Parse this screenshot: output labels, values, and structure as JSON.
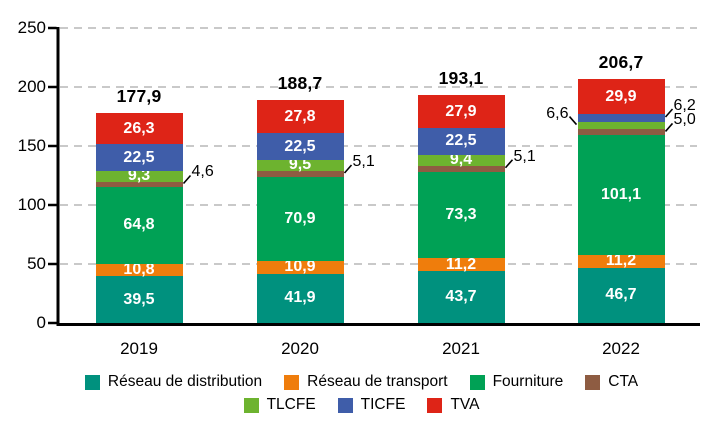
{
  "chart_data": {
    "type": "bar",
    "stacked": true,
    "title": "",
    "xlabel": "",
    "ylabel": "",
    "categories": [
      "2019",
      "2020",
      "2021",
      "2022"
    ],
    "series": [
      {
        "name": "Réseau de distribution",
        "color": "#00917E",
        "values": [
          39.5,
          41.9,
          43.7,
          46.7
        ]
      },
      {
        "name": "Réseau de transport",
        "color": "#EF7D0C",
        "values": [
          10.8,
          10.9,
          11.2,
          11.2
        ]
      },
      {
        "name": "Fourniture",
        "color": "#00A155",
        "values": [
          64.8,
          70.9,
          73.3,
          101.1
        ]
      },
      {
        "name": "CTA",
        "color": "#8E5C42",
        "values": [
          4.6,
          5.1,
          5.1,
          5.0
        ]
      },
      {
        "name": "TLCFE",
        "color": "#6DB32F",
        "values": [
          9.3,
          9.5,
          9.4,
          6.6
        ]
      },
      {
        "name": "TICFE",
        "color": "#3F5DA9",
        "values": [
          22.5,
          22.5,
          22.5,
          6.2
        ]
      },
      {
        "name": "TVA",
        "color": "#DE2417",
        "values": [
          26.3,
          27.8,
          27.9,
          29.9
        ]
      }
    ],
    "totals": [
      177.9,
      188.7,
      193.1,
      206.7
    ],
    "ylim": [
      0,
      250
    ],
    "yticks": [
      0,
      50,
      100,
      150,
      200,
      250
    ],
    "grid": true,
    "gridline_color": "#C9C9C9",
    "axis_color": "#000000",
    "decimal_separator": ",",
    "legend_position": "bottom",
    "legend_rows": [
      [
        0,
        1,
        2,
        3
      ],
      [
        4,
        5,
        6
      ]
    ],
    "outside_labels": [
      {
        "category": "2019",
        "series": "CTA",
        "side": "right"
      },
      {
        "category": "2020",
        "series": "CTA",
        "side": "right"
      },
      {
        "category": "2021",
        "series": "CTA",
        "side": "right"
      },
      {
        "category": "2022",
        "series": "TLCFE",
        "side": "left"
      },
      {
        "category": "2022",
        "series": "TICFE",
        "side": "right"
      },
      {
        "category": "2022",
        "series": "CTA",
        "side": "right"
      }
    ]
  }
}
